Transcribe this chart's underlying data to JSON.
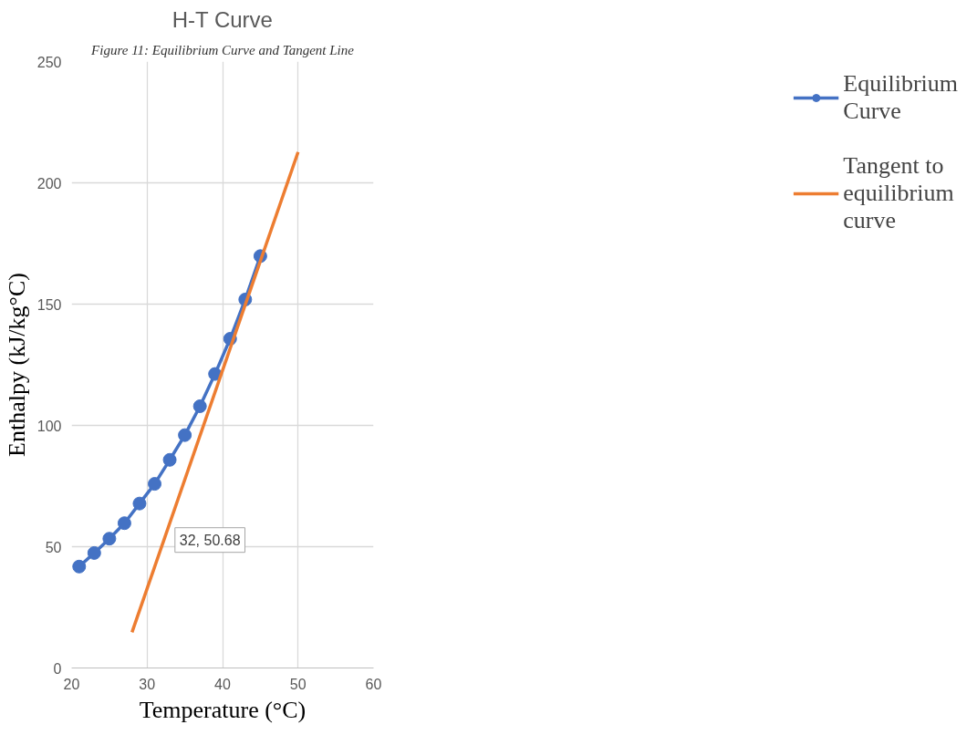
{
  "chart_data": {
    "type": "line",
    "title": "H-T Curve",
    "xlabel": "Temperature (°C)",
    "ylabel": "Enthalpy (kJ/kg°C)",
    "annotations": [
      "Figure 11: Equilibrium Curve and Tangent Line",
      {
        "text": "32, 50.68",
        "x": 32,
        "y": 50.68
      }
    ],
    "series": [
      {
        "name": "Equilibrium Curve",
        "color": "#4472c4",
        "marker": "circle",
        "x": [
          21,
          23,
          25,
          27,
          29,
          31,
          33,
          35,
          37,
          39,
          41,
          43,
          45
        ],
        "values": [
          41.8,
          47.4,
          53.3,
          59.7,
          67.8,
          75.9,
          85.8,
          96.0,
          107.9,
          121.2,
          135.7,
          151.9,
          169.8
        ]
      },
      {
        "name": "Tangent to equilibrium curve",
        "color": "#ed7d31",
        "marker": "none",
        "x": [
          28,
          50
        ],
        "values": [
          14.7,
          212.7
        ]
      }
    ],
    "xlim": [
      20,
      60
    ],
    "xticks": [
      20,
      30,
      40,
      50,
      60
    ],
    "ylim": [
      0,
      250
    ],
    "yticks": [
      0,
      50,
      100,
      150,
      200,
      250
    ],
    "grid": true,
    "legend": "right",
    "line_style": "solid"
  }
}
